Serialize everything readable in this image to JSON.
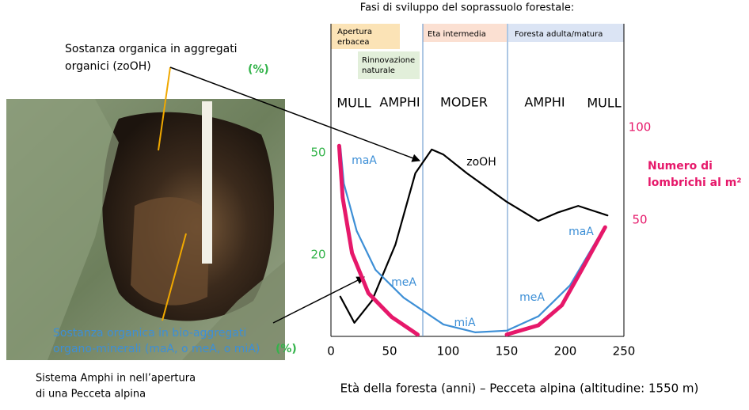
{
  "photo": {
    "caption_top": [
      "Sostanza organica in aggregati",
      "organici (zoOH)"
    ],
    "unit_top": "(%)",
    "caption_bottom": [
      "Sostanza organica in bio-aggregati",
      "organo-minerali (maA, o meA, o miA)"
    ],
    "unit_bottom": "(%)",
    "caption": [
      "Sistema Amphi in nell’apertura",
      "di una Pecceta alpina"
    ]
  },
  "chart_data": {
    "type": "line",
    "title": "Fasi di sviluppo del soprassuolo forestale:",
    "x_label": "Età della foresta (anni) – Pecceta alpina (altitudine: 1550 m)",
    "y2_label": [
      "Numero di",
      "lombrichi al m²"
    ],
    "phases": [
      "Apertura erbacea",
      "Rinnovazione naturale",
      "Eta intermedia",
      "Foresta adulta/matura"
    ],
    "humus_forms": [
      "MULL",
      "AMPHI",
      "MODER",
      "AMPHI",
      "MULL"
    ],
    "xlim": [
      0,
      250
    ],
    "xticks": [
      0,
      50,
      100,
      150,
      200,
      250
    ],
    "ylim": [
      -4,
      88
    ],
    "yticks": [
      20,
      50
    ],
    "y2lim": [
      -13,
      156
    ],
    "y2ticks": [
      50,
      100
    ],
    "y_color": "#33b34a",
    "y2_color": "#e6186a",
    "series": [
      {
        "name": "zoOH",
        "color": "#000000",
        "x": [
          8,
          20,
          35,
          55,
          72,
          86,
          96,
          116,
          150,
          177,
          194,
          211,
          236
        ],
        "values": [
          7.7,
          0,
          6.5,
          23,
          44,
          51,
          49.5,
          44,
          35.6,
          30,
          32.5,
          34.4,
          31.6
        ]
      },
      {
        "labels": [
          "maA",
          "meA",
          "miA",
          "meA",
          "maA"
        ],
        "color": "#3d8fd6",
        "x": [
          8,
          11,
          22,
          38,
          62,
          96,
          123,
          150,
          177,
          204,
          228
        ],
        "values": [
          52,
          41,
          27,
          15.6,
          7.4,
          -0.5,
          -2.8,
          -2.3,
          1.9,
          11,
          25
        ]
      },
      {
        "color": "#e6186a",
        "axis": "y2",
        "x": [
          7,
          10,
          18,
          32,
          52,
          74,
          112,
          150,
          177,
          197,
          214,
          234
        ],
        "values": [
          90,
          62,
          32,
          10.3,
          -2.6,
          -12,
          null,
          -12,
          -7,
          3.8,
          23,
          46
        ]
      }
    ]
  }
}
